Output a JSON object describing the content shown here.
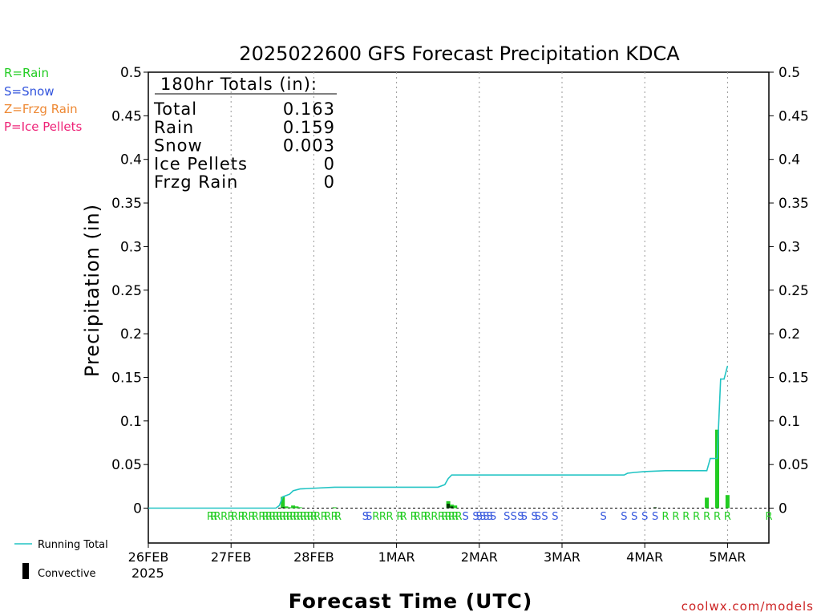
{
  "chart_data": {
    "type": "bar",
    "title": "2025022600 GFS Forecast Precipitation KDCA",
    "ylabel": "Precipitation (in)",
    "xlabel": "Forecast Time (UTC)",
    "ylim": [
      -0.04,
      0.5
    ],
    "yticks": [
      0,
      0.05,
      0.1,
      0.15,
      0.2,
      0.25,
      0.3,
      0.35,
      0.4,
      0.45,
      0.5
    ],
    "ytick_labels": [
      "0",
      "0.05",
      "0.1",
      "0.15",
      "0.2",
      "0.25",
      "0.3",
      "0.35",
      "0.4",
      "0.45",
      "0.5"
    ],
    "xlim": [
      0,
      180
    ],
    "xticks": [
      0,
      24,
      48,
      72,
      96,
      120,
      144,
      168
    ],
    "xtick_labels": [
      "26FEB",
      "27FEB",
      "28FEB",
      "1MAR",
      "2MAR",
      "3MAR",
      "4MAR",
      "5MAR"
    ],
    "year_label": "2025",
    "grid": "vertical-dotted",
    "totals": {
      "header": "180hr Totals (in):",
      "rows": [
        {
          "label": "Total",
          "value": "0.163"
        },
        {
          "label": "Rain",
          "value": "0.159"
        },
        {
          "label": "Snow",
          "value": "0.003"
        },
        {
          "label": "Ice Pellets",
          "value": "0"
        },
        {
          "label": "Frzg Rain",
          "value": "0"
        }
      ]
    },
    "type_legend": [
      {
        "label": "R=Rain",
        "color": "#22cc22"
      },
      {
        "label": "S=Snow",
        "color": "#3355dd"
      },
      {
        "label": "Z=Frzg Rain",
        "color": "#ee8833"
      },
      {
        "label": "P=Ice Pellets",
        "color": "#ee2277"
      }
    ],
    "series_legend": {
      "running_total": "Running Total",
      "convective": "Convective"
    },
    "colors": {
      "rain": "#22cc22",
      "snow": "#3355dd",
      "running_total": "#22c4c4",
      "convective": "#003300"
    },
    "bars": [
      {
        "x": 39,
        "value": 0.013
      },
      {
        "x": 40,
        "value": 0.002
      },
      {
        "x": 41,
        "value": 0.001
      },
      {
        "x": 42,
        "value": 0.003
      },
      {
        "x": 43,
        "value": 0.002
      },
      {
        "x": 44,
        "value": 0.001
      },
      {
        "x": 54,
        "value": 0.001
      },
      {
        "x": 87,
        "value": 0.008
      },
      {
        "x": 88,
        "value": 0.004
      },
      {
        "x": 89,
        "value": 0.003
      },
      {
        "x": 162,
        "value": 0.012
      },
      {
        "x": 165,
        "value": 0.09
      },
      {
        "x": 168,
        "value": 0.015
      }
    ],
    "convective_bars": [
      {
        "x": 39,
        "value": 0.001
      },
      {
        "x": 87,
        "value": 0.005
      },
      {
        "x": 88,
        "value": 0.002
      },
      {
        "x": 147,
        "value": 0.001
      }
    ],
    "running_total": {
      "x": [
        0,
        37,
        38,
        39,
        41,
        42,
        44,
        54,
        84,
        86,
        87,
        88,
        89,
        93,
        138,
        139,
        141,
        144,
        150,
        162,
        163,
        165,
        166,
        167,
        168
      ],
      "y": [
        0,
        0,
        0.003,
        0.013,
        0.016,
        0.02,
        0.022,
        0.024,
        0.024,
        0.027,
        0.034,
        0.038,
        0.038,
        0.038,
        0.038,
        0.04,
        0.041,
        0.042,
        0.043,
        0.043,
        0.057,
        0.057,
        0.148,
        0.148,
        0.163
      ]
    },
    "type_markers": [
      {
        "x": 18,
        "t": "R"
      },
      {
        "x": 19,
        "t": "R"
      },
      {
        "x": 20,
        "t": "R"
      },
      {
        "x": 22,
        "t": "R"
      },
      {
        "x": 24,
        "t": "R"
      },
      {
        "x": 25,
        "t": "R"
      },
      {
        "x": 27,
        "t": "R"
      },
      {
        "x": 28,
        "t": "R"
      },
      {
        "x": 30,
        "t": "R"
      },
      {
        "x": 31,
        "t": "R"
      },
      {
        "x": 33,
        "t": "R"
      },
      {
        "x": 34,
        "t": "R"
      },
      {
        "x": 35,
        "t": "R"
      },
      {
        "x": 36,
        "t": "R"
      },
      {
        "x": 37,
        "t": "R"
      },
      {
        "x": 38,
        "t": "R"
      },
      {
        "x": 39,
        "t": "R"
      },
      {
        "x": 40,
        "t": "R"
      },
      {
        "x": 41,
        "t": "R"
      },
      {
        "x": 42,
        "t": "R"
      },
      {
        "x": 43,
        "t": "R"
      },
      {
        "x": 44,
        "t": "R"
      },
      {
        "x": 45,
        "t": "R"
      },
      {
        "x": 46,
        "t": "R"
      },
      {
        "x": 47,
        "t": "R"
      },
      {
        "x": 48,
        "t": "R"
      },
      {
        "x": 49,
        "t": "R"
      },
      {
        "x": 51,
        "t": "R"
      },
      {
        "x": 52,
        "t": "R"
      },
      {
        "x": 54,
        "t": "R"
      },
      {
        "x": 55,
        "t": "R"
      },
      {
        "x": 63,
        "t": "S"
      },
      {
        "x": 64,
        "t": "S"
      },
      {
        "x": 66,
        "t": "R"
      },
      {
        "x": 68,
        "t": "R"
      },
      {
        "x": 70,
        "t": "R"
      },
      {
        "x": 73,
        "t": "R"
      },
      {
        "x": 74,
        "t": "R"
      },
      {
        "x": 77,
        "t": "R"
      },
      {
        "x": 78,
        "t": "R"
      },
      {
        "x": 80,
        "t": "R"
      },
      {
        "x": 81,
        "t": "R"
      },
      {
        "x": 83,
        "t": "R"
      },
      {
        "x": 85,
        "t": "R"
      },
      {
        "x": 86,
        "t": "R"
      },
      {
        "x": 87,
        "t": "R"
      },
      {
        "x": 88,
        "t": "R"
      },
      {
        "x": 89,
        "t": "R"
      },
      {
        "x": 90,
        "t": "R"
      },
      {
        "x": 92,
        "t": "S"
      },
      {
        "x": 95,
        "t": "S"
      },
      {
        "x": 96,
        "t": "S"
      },
      {
        "x": 97,
        "t": "S"
      },
      {
        "x": 98,
        "t": "S"
      },
      {
        "x": 99,
        "t": "S"
      },
      {
        "x": 100,
        "t": "S"
      },
      {
        "x": 104,
        "t": "S"
      },
      {
        "x": 106,
        "t": "S"
      },
      {
        "x": 108,
        "t": "S"
      },
      {
        "x": 109,
        "t": "S"
      },
      {
        "x": 112,
        "t": "S"
      },
      {
        "x": 113,
        "t": "S"
      },
      {
        "x": 115,
        "t": "S"
      },
      {
        "x": 118,
        "t": "S"
      },
      {
        "x": 132,
        "t": "S"
      },
      {
        "x": 138,
        "t": "S"
      },
      {
        "x": 141,
        "t": "S"
      },
      {
        "x": 144,
        "t": "S"
      },
      {
        "x": 147,
        "t": "S"
      },
      {
        "x": 150,
        "t": "R"
      },
      {
        "x": 153,
        "t": "R"
      },
      {
        "x": 156,
        "t": "R"
      },
      {
        "x": 159,
        "t": "R"
      },
      {
        "x": 162,
        "t": "R"
      },
      {
        "x": 165,
        "t": "R"
      },
      {
        "x": 168,
        "t": "R"
      },
      {
        "x": 180,
        "t": "R"
      }
    ]
  },
  "footer": {
    "credit": "coolwx.com/models"
  }
}
